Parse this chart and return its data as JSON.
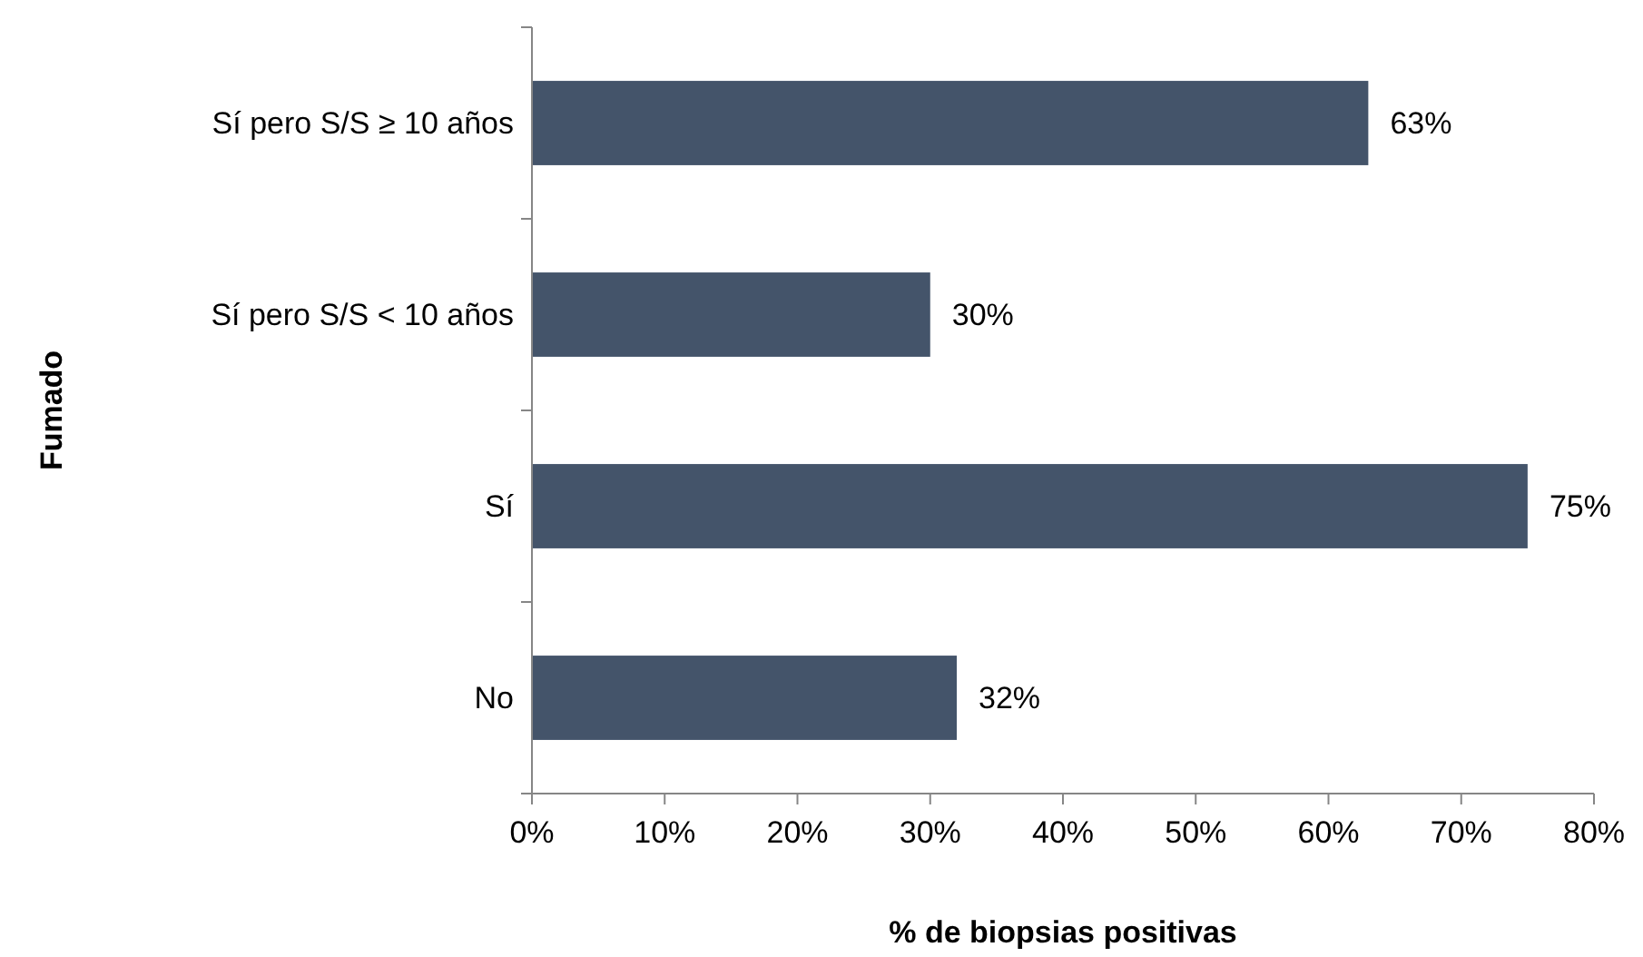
{
  "chart_data": {
    "type": "bar",
    "orientation": "horizontal",
    "xlabel": "% de biopsias positivas",
    "ylabel": "Fumado",
    "categories": [
      "Sí pero S/S ≥ 10 años",
      "Sí pero S/S < 10 años",
      "Sí",
      "No"
    ],
    "values": [
      63,
      30,
      75,
      32
    ],
    "color": "#44546a",
    "value_labels": [
      "63%",
      "30%",
      "75%",
      "32%"
    ],
    "xlim": [
      0,
      80
    ],
    "xticks": [
      {
        "value": 0,
        "label": "0%"
      },
      {
        "value": 10,
        "label": "10%"
      },
      {
        "value": 20,
        "label": "20%"
      },
      {
        "value": 30,
        "label": "30%"
      },
      {
        "value": 40,
        "label": "40%"
      },
      {
        "value": 50,
        "label": "50%"
      },
      {
        "value": 60,
        "label": "60%"
      },
      {
        "value": 70,
        "label": "70%"
      },
      {
        "value": 80,
        "label": "80%"
      }
    ],
    "grid": false
  }
}
